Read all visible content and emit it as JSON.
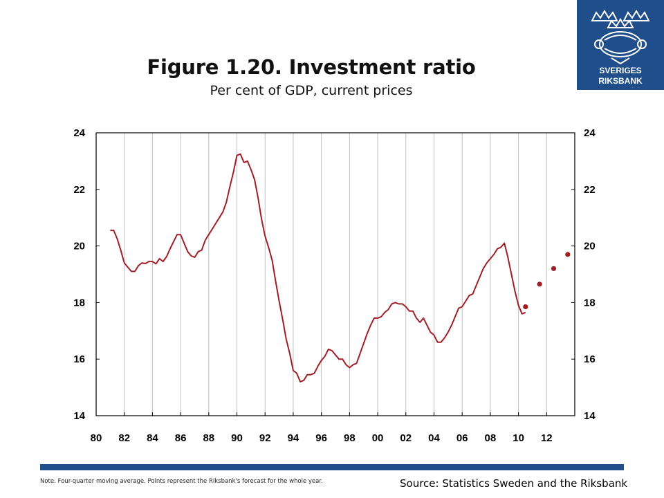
{
  "logo": {
    "line1": "SVERIGES",
    "line2": "RIKSBANK"
  },
  "header": {
    "title": "Figure 1.20. Investment ratio",
    "subtitle": "Per cent of GDP, current prices"
  },
  "footer": {
    "note": "Note. Four-quarter moving average. Points represent the Riksbank's forecast for the whole year.",
    "source": "Source: Statistics Sweden and the Riksbank"
  },
  "colors": {
    "brand_blue": "#1f4e8a",
    "series": "#a01e25",
    "grid": "#c0c0c0"
  },
  "chart_data": {
    "type": "line",
    "title": "Figure 1.20. Investment ratio",
    "subtitle": "Per cent of GDP, current prices",
    "x_ticks": [
      "80",
      "82",
      "84",
      "86",
      "88",
      "90",
      "92",
      "94",
      "96",
      "98",
      "00",
      "02",
      "04",
      "06",
      "08",
      "10",
      "12"
    ],
    "y_ticks": [
      14,
      16,
      18,
      20,
      22,
      24
    ],
    "ylim": [
      14,
      24
    ],
    "xlim": [
      1980,
      2014
    ],
    "grid": "vertical",
    "y_axis_both_sides": true,
    "series": [
      {
        "type": "line",
        "x": [
          1981.0,
          1981.25,
          1981.5,
          1981.75,
          1982.0,
          1982.25,
          1982.5,
          1982.75,
          1983.0,
          1983.25,
          1983.5,
          1983.75,
          1984.0,
          1984.25,
          1984.5,
          1984.75,
          1985.0,
          1985.25,
          1985.5,
          1985.75,
          1986.0,
          1986.25,
          1986.5,
          1986.75,
          1987.0,
          1987.25,
          1987.5,
          1987.75,
          1988.0,
          1988.25,
          1988.5,
          1988.75,
          1989.0,
          1989.25,
          1989.5,
          1989.75,
          1990.0,
          1990.25,
          1990.5,
          1990.75,
          1991.0,
          1991.25,
          1991.5,
          1991.75,
          1992.0,
          1992.25,
          1992.5,
          1992.75,
          1993.0,
          1993.25,
          1993.5,
          1993.75,
          1994.0,
          1994.25,
          1994.5,
          1994.75,
          1995.0,
          1995.25,
          1995.5,
          1995.75,
          1996.0,
          1996.25,
          1996.5,
          1996.75,
          1997.0,
          1997.25,
          1997.5,
          1997.75,
          1998.0,
          1998.25,
          1998.5,
          1998.75,
          1999.0,
          1999.25,
          1999.5,
          1999.75,
          2000.0,
          2000.25,
          2000.5,
          2000.75,
          2001.0,
          2001.25,
          2001.5,
          2001.75,
          2002.0,
          2002.25,
          2002.5,
          2002.75,
          2003.0,
          2003.25,
          2003.5,
          2003.75,
          2004.0,
          2004.25,
          2004.5,
          2004.75,
          2005.0,
          2005.25,
          2005.5,
          2005.75,
          2006.0,
          2006.25,
          2006.5,
          2006.75,
          2007.0,
          2007.25,
          2007.5,
          2007.75,
          2008.0,
          2008.25,
          2008.5,
          2008.75,
          2009.0,
          2009.25,
          2009.5,
          2009.75,
          2010.0,
          2010.25,
          2010.5
        ],
        "values": [
          20.55,
          20.55,
          20.25,
          19.85,
          19.4,
          19.25,
          19.1,
          19.1,
          19.3,
          19.4,
          19.38,
          19.45,
          19.45,
          19.37,
          19.55,
          19.45,
          19.62,
          19.9,
          20.15,
          20.4,
          20.4,
          20.1,
          19.8,
          19.65,
          19.6,
          19.8,
          19.85,
          20.2,
          20.4,
          20.6,
          20.8,
          21.0,
          21.2,
          21.55,
          22.1,
          22.6,
          23.2,
          23.25,
          22.95,
          23.0,
          22.7,
          22.35,
          21.7,
          20.95,
          20.35,
          19.95,
          19.5,
          18.75,
          18.05,
          17.4,
          16.7,
          16.2,
          15.6,
          15.5,
          15.2,
          15.25,
          15.45,
          15.45,
          15.5,
          15.75,
          15.95,
          16.1,
          16.35,
          16.3,
          16.15,
          16.0,
          16.0,
          15.8,
          15.7,
          15.8,
          15.85,
          16.2,
          16.55,
          16.9,
          17.2,
          17.45,
          17.45,
          17.5,
          17.65,
          17.75,
          17.95,
          18.0,
          17.95,
          17.95,
          17.85,
          17.7,
          17.7,
          17.45,
          17.3,
          17.45,
          17.2,
          16.95,
          16.85,
          16.6,
          16.6,
          16.75,
          16.95,
          17.2,
          17.5,
          17.8,
          17.85,
          18.05,
          18.25,
          18.3,
          18.6,
          18.9,
          19.2,
          19.4,
          19.55,
          19.7,
          19.9,
          19.95,
          20.1,
          19.6,
          19.0,
          18.4,
          17.9,
          17.6,
          17.65
        ]
      },
      {
        "type": "scatter",
        "name": "forecast",
        "x": [
          2010.5,
          2011.5,
          2012.5,
          2013.5
        ],
        "values": [
          17.85,
          18.65,
          19.2,
          19.7
        ]
      }
    ]
  }
}
